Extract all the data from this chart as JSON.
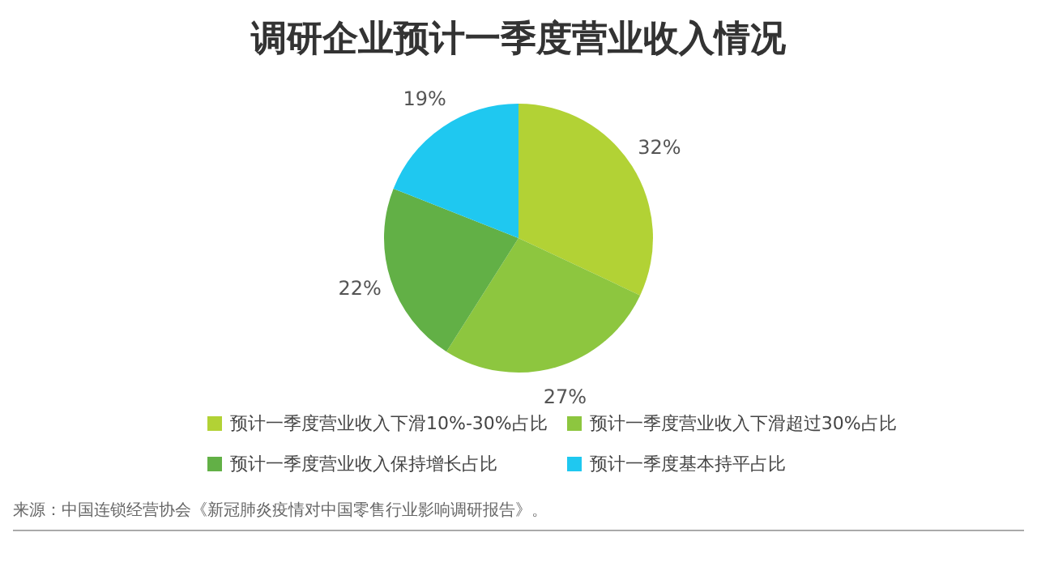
{
  "chart_data": {
    "type": "pie",
    "title": "调研企业预计一季度营业收入情况",
    "categories": [
      "预计一季度营业收入下滑10%-30%占比",
      "预计一季度营业收入下滑超过30%占比",
      "预计一季度营业收入保持增长占比",
      "预计一季度基本持平占比"
    ],
    "values": [
      32,
      27,
      22,
      19
    ],
    "colors": [
      "#b2d235",
      "#8dc63f",
      "#62b046",
      "#1fc8f0"
    ],
    "value_labels": [
      "32%",
      "27%",
      "22%",
      "19%"
    ],
    "legend": "bottom",
    "annotations": [
      "来源：中国连锁经营协会《新冠肺炎疫情对中国零售行业影响调研报告》。"
    ]
  }
}
